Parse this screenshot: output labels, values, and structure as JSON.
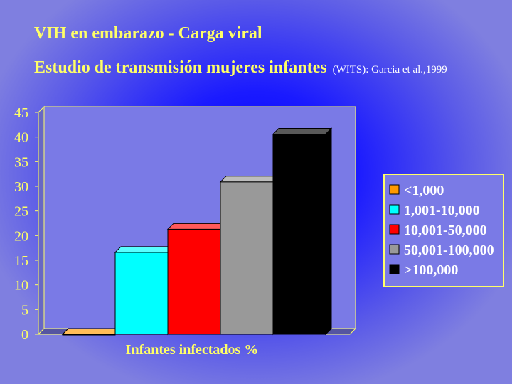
{
  "chart_data": {
    "type": "bar",
    "title": "VIH en embarazo - Carga viral",
    "subtitle": "Estudio de transmisión mujeres infantes",
    "citation": "(WITS): Garcia et al.,1999",
    "xlabel": "Infantes infectados %",
    "ylabel": "",
    "ylim": [
      0,
      45
    ],
    "yticks": [
      0,
      5,
      10,
      15,
      20,
      25,
      30,
      35,
      40,
      45
    ],
    "grid": false,
    "legend_position": "right",
    "categories": [
      "<1,000",
      "1,001-10,000",
      "10,001-50,000",
      "50,001-100,000",
      ">100,000"
    ],
    "values": [
      0,
      16.6,
      21.3,
      30.9,
      40.6
    ],
    "colors": [
      "#ff9900",
      "#00ffff",
      "#ff0000",
      "#999999",
      "#000000"
    ],
    "plot_background": "#7a7ae6",
    "axis_color": "#ffff66"
  }
}
